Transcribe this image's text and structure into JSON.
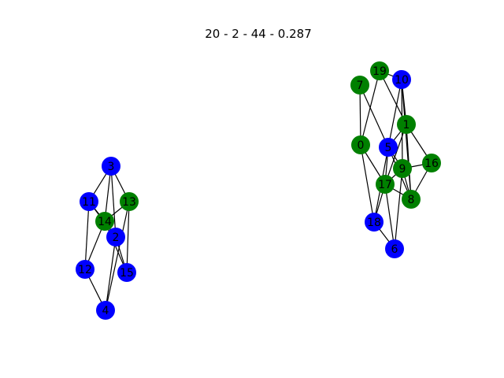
{
  "title": "20 - 2 - 44 - 0.287",
  "colors": {
    "blue": "#0000ff",
    "green": "#008000",
    "edge": "#000000"
  },
  "nodes": [
    {
      "id": "0",
      "label": "0",
      "color": "green"
    },
    {
      "id": "1",
      "label": "1",
      "color": "green"
    },
    {
      "id": "2",
      "label": "2",
      "color": "blue"
    },
    {
      "id": "3",
      "label": "3",
      "color": "blue"
    },
    {
      "id": "4",
      "label": "4",
      "color": "blue"
    },
    {
      "id": "5",
      "label": "5",
      "color": "blue"
    },
    {
      "id": "6",
      "label": "6",
      "color": "blue"
    },
    {
      "id": "7",
      "label": "7",
      "color": "green"
    },
    {
      "id": "8",
      "label": "8",
      "color": "green"
    },
    {
      "id": "9",
      "label": "9",
      "color": "green"
    },
    {
      "id": "10",
      "label": "10",
      "color": "blue"
    },
    {
      "id": "11",
      "label": "11",
      "color": "blue"
    },
    {
      "id": "12",
      "label": "12",
      "color": "blue"
    },
    {
      "id": "13",
      "label": "13",
      "color": "green"
    },
    {
      "id": "14",
      "label": "14",
      "color": "green"
    },
    {
      "id": "15",
      "label": "15",
      "color": "blue"
    },
    {
      "id": "16",
      "label": "16",
      "color": "green"
    },
    {
      "id": "17",
      "label": "17",
      "color": "green"
    },
    {
      "id": "18",
      "label": "18",
      "color": "blue"
    },
    {
      "id": "19",
      "label": "19",
      "color": "green"
    }
  ],
  "edges": [
    [
      "3",
      "11"
    ],
    [
      "3",
      "14"
    ],
    [
      "3",
      "2"
    ],
    [
      "3",
      "13"
    ],
    [
      "11",
      "14"
    ],
    [
      "11",
      "2"
    ],
    [
      "11",
      "12"
    ],
    [
      "13",
      "14"
    ],
    [
      "13",
      "15"
    ],
    [
      "13",
      "4"
    ],
    [
      "14",
      "12"
    ],
    [
      "14",
      "2"
    ],
    [
      "14",
      "15"
    ],
    [
      "2",
      "15"
    ],
    [
      "2",
      "4"
    ],
    [
      "12",
      "4"
    ],
    [
      "7",
      "0"
    ],
    [
      "7",
      "5"
    ],
    [
      "19",
      "0"
    ],
    [
      "19",
      "10"
    ],
    [
      "19",
      "1"
    ],
    [
      "10",
      "5"
    ],
    [
      "10",
      "1"
    ],
    [
      "10",
      "9"
    ],
    [
      "10",
      "8"
    ],
    [
      "1",
      "5"
    ],
    [
      "1",
      "17"
    ],
    [
      "1",
      "8"
    ],
    [
      "1",
      "16"
    ],
    [
      "0",
      "17"
    ],
    [
      "0",
      "18"
    ],
    [
      "5",
      "9"
    ],
    [
      "5",
      "8"
    ],
    [
      "5",
      "17"
    ],
    [
      "9",
      "16"
    ],
    [
      "9",
      "17"
    ],
    [
      "9",
      "8"
    ],
    [
      "16",
      "8"
    ],
    [
      "17",
      "8"
    ],
    [
      "17",
      "18"
    ],
    [
      "17",
      "6"
    ],
    [
      "18",
      "6"
    ],
    [
      "18",
      "5"
    ],
    [
      "6",
      "9"
    ]
  ]
}
